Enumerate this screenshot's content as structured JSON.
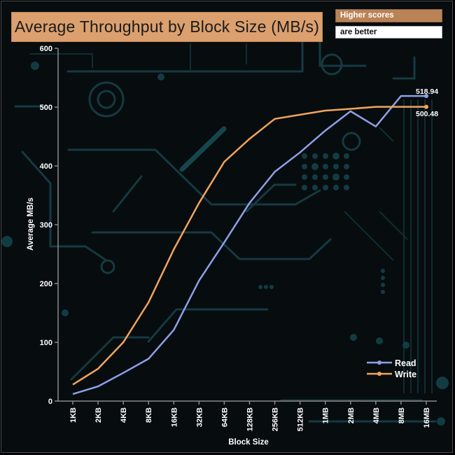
{
  "header": {
    "title": "Average Throughput by Block Size (MB/s)",
    "badge_top": "Higher scores",
    "badge_bottom": "are better"
  },
  "chart_data": {
    "type": "line",
    "title": "Average Throughput by Block Size (MB/s)",
    "xlabel": "Block Size",
    "ylabel": "Average MB/s",
    "ylim": [
      0,
      600
    ],
    "yticks": [
      "0",
      "100",
      "200",
      "300",
      "400",
      "500",
      "600"
    ],
    "categories": [
      "1KB",
      "2KB",
      "4KB",
      "8KB",
      "16KB",
      "32KB",
      "64KB",
      "128KB",
      "256KB",
      "512KB",
      "1MB",
      "2MB",
      "4MB",
      "8MB",
      "16MB"
    ],
    "series": [
      {
        "name": "Read",
        "color": "#8da0e6",
        "values": [
          12,
          25,
          48,
          72,
          121,
          205,
          270,
          337,
          390,
          423,
          460,
          493,
          467,
          518.94,
          518.94
        ],
        "end_label": "518.94"
      },
      {
        "name": "Write",
        "color": "#f0a55c",
        "values": [
          28,
          55,
          100,
          168,
          258,
          337,
          407,
          446,
          480,
          487,
          494,
          497,
          500.48,
          500.48,
          500.48
        ],
        "end_label": "500.48"
      }
    ],
    "legend": "bottom-right"
  }
}
